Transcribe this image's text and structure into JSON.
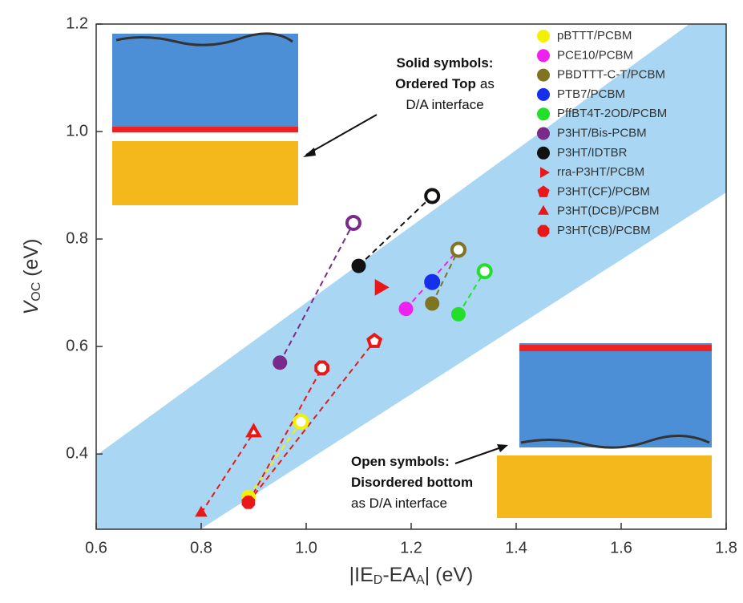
{
  "chart_data": {
    "type": "scatter",
    "xlabel_parts": [
      "|IE",
      "D",
      "-EA",
      "A",
      "| (eV)"
    ],
    "ylabel_parts": [
      "V",
      "OC",
      " (eV)"
    ],
    "xlim": [
      0.6,
      1.8
    ],
    "ylim": [
      0.26,
      1.2
    ],
    "xticks": [
      0.6,
      0.8,
      {
        "value": 1,
        "label": "1.0"
      },
      1.2,
      1.4,
      1.6,
      1.8
    ],
    "yticks": [
      0.4,
      0.6,
      0.8,
      {
        "value": 1,
        "label": "1.0"
      },
      1.2
    ],
    "series": [
      {
        "name": "pBTTT/PCBM",
        "color": "#f2f200",
        "marker": "circle",
        "x": [
          0.89,
          0.99
        ],
        "y": [
          0.32,
          0.46
        ]
      },
      {
        "name": "PCE10/PCBM",
        "color": "#ee22ee",
        "marker": "circle",
        "x": [
          1.19,
          1.29
        ],
        "y": [
          0.67,
          0.78
        ]
      },
      {
        "name": "PBDTTT-C-T/PCBM",
        "color": "#7f7420",
        "marker": "circle",
        "x": [
          1.24,
          1.29
        ],
        "y": [
          0.68,
          0.78
        ]
      },
      {
        "name": "PTB7/PCBM",
        "color": "#1530e8",
        "marker": "circle",
        "x": [
          1.24,
          1.24
        ],
        "y": [
          0.72,
          0.72
        ]
      },
      {
        "name": "PffBT4T-2OD/PCBM",
        "color": "#22e02a",
        "marker": "circle",
        "x": [
          1.29,
          1.34
        ],
        "y": [
          0.66,
          0.74
        ]
      },
      {
        "name": "P3HT/Bis-PCBM",
        "color": "#7a2a8a",
        "marker": "circle",
        "x": [
          0.95,
          1.09
        ],
        "y": [
          0.57,
          0.83
        ]
      },
      {
        "name": "P3HT/IDTBR",
        "color": "#111111",
        "marker": "circle",
        "x": [
          1.1,
          1.24
        ],
        "y": [
          0.75,
          0.88
        ]
      },
      {
        "name": "rra-P3HT/PCBM",
        "color": "#e81818",
        "marker": "triangle-right",
        "x": [
          1.14,
          1.14
        ],
        "y": [
          0.71,
          0.71
        ]
      },
      {
        "name": "P3HT(CF)/PCBM",
        "color": "#e81818",
        "marker": "pentagon",
        "x": [
          0.89,
          1.13
        ],
        "y": [
          0.31,
          0.61
        ]
      },
      {
        "name": "P3HT(DCB)/PCBM",
        "color": "#e81818",
        "marker": "triangle-up",
        "x": [
          0.8,
          0.9
        ],
        "y": [
          0.29,
          0.44
        ]
      },
      {
        "name": "P3HT(CB)/PCBM",
        "color": "#e81818",
        "marker": "octagon",
        "x": [
          0.89,
          1.03
        ],
        "y": [
          0.31,
          0.56
        ]
      }
    ],
    "annotations": [
      {
        "lines": [
          [
            {
              "text": "Solid symbols:",
              "bold": true
            }
          ],
          [
            {
              "text": "Ordered Top",
              "bold": true
            },
            {
              "text": "as",
              "bold": false
            }
          ],
          [
            {
              "text": "D/A interface",
              "bold": false
            }
          ]
        ]
      },
      {
        "lines": [
          [
            {
              "text": "Open symbols:",
              "bold": true
            }
          ],
          [
            {
              "text": "Disordered bottom",
              "bold": true
            }
          ],
          [
            {
              "text": "as D/A interface",
              "bold": false
            }
          ]
        ]
      }
    ]
  }
}
